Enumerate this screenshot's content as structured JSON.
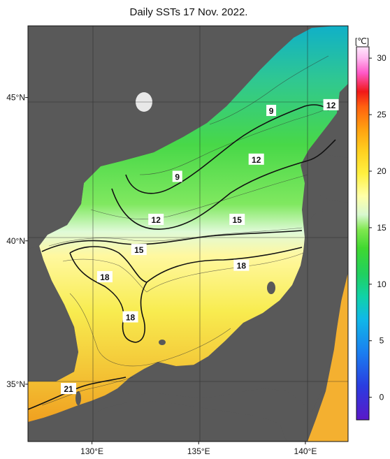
{
  "title": "Daily SSTs 17 Nov. 2022.",
  "map": {
    "lon_range": [
      127,
      142
    ],
    "lat_range": [
      33,
      47.5
    ],
    "lat_ticks": [
      {
        "value": 35,
        "label": "35°N"
      },
      {
        "value": 40,
        "label": "40°N"
      },
      {
        "value": 45,
        "label": "45°N"
      }
    ],
    "lon_ticks": [
      {
        "value": 130,
        "label": "130°E"
      },
      {
        "value": 135,
        "label": "135°E"
      },
      {
        "value": 140,
        "label": "140°E"
      }
    ],
    "land_color": "#595959",
    "grid": true
  },
  "contour_labels": [
    {
      "text": "9",
      "lon": 138.4,
      "lat": 44.55
    },
    {
      "text": "12",
      "lon": 141.2,
      "lat": 44.75
    },
    {
      "text": "12",
      "lon": 137.7,
      "lat": 42.85
    },
    {
      "text": "9",
      "lon": 134.0,
      "lat": 42.25
    },
    {
      "text": "12",
      "lon": 133.0,
      "lat": 40.75
    },
    {
      "text": "15",
      "lon": 136.8,
      "lat": 40.75
    },
    {
      "text": "15",
      "lon": 132.2,
      "lat": 39.7
    },
    {
      "text": "18",
      "lon": 137.0,
      "lat": 39.15
    },
    {
      "text": "18",
      "lon": 130.6,
      "lat": 38.75
    },
    {
      "text": "18",
      "lon": 131.8,
      "lat": 37.35
    },
    {
      "text": "21",
      "lon": 128.9,
      "lat": 34.85
    }
  ],
  "colorbar": {
    "unit": "[℃]",
    "range": [
      -2,
      31
    ],
    "ticks": [
      "0",
      "5",
      "10",
      "15",
      "20",
      "25",
      "30"
    ],
    "tick_values": [
      0,
      5,
      10,
      15,
      20,
      25,
      30
    ],
    "colors": [
      "#5a18c8",
      "#2a3ce0",
      "#1a7ef0",
      "#10b8e8",
      "#10d2a8",
      "#20d060",
      "#40d830",
      "#80e850",
      "#d8f8d0",
      "#ffffa8",
      "#fff040",
      "#ffd020",
      "#ffa010",
      "#ff6010",
      "#f01818",
      "#ff58c8",
      "#ffb8f0",
      "#ffe8fc"
    ]
  }
}
